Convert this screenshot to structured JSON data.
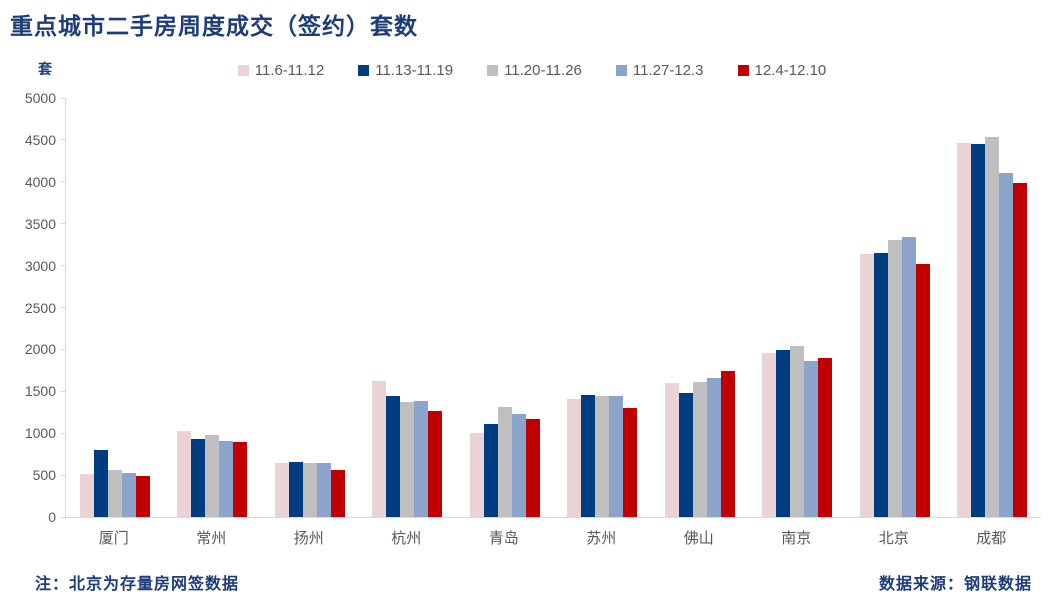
{
  "title": "重点城市二手房周度成交（签约）套数",
  "unit_label": "套",
  "footer": {
    "note": "注：北京为存量房网签数据",
    "source": "数据来源：钢联数据"
  },
  "colors": {
    "title_text": "#1E3C78",
    "footer_text": "#1E3C78",
    "axis_text": "#595959",
    "legend_text": "#595959",
    "axis_line": "#D9D9D9",
    "background": "#FFFFFF"
  },
  "chart_data": {
    "type": "bar",
    "title": "重点城市二手房周度成交（签约）套数",
    "ylabel": "套",
    "xlabel": "",
    "categories": [
      "厦门",
      "常州",
      "扬州",
      "杭州",
      "青岛",
      "苏州",
      "佛山",
      "南京",
      "北京",
      "成都"
    ],
    "series": [
      {
        "name": "11.6-11.12",
        "color": "#EBD3D5",
        "values": [
          510,
          1030,
          645,
          1620,
          1000,
          1410,
          1595,
          1960,
          3135,
          4460
        ]
      },
      {
        "name": "11.13-11.19",
        "color": "#003D80",
        "values": [
          795,
          930,
          655,
          1445,
          1105,
          1455,
          1475,
          1990,
          3150,
          4450
        ]
      },
      {
        "name": "11.20-11.26",
        "color": "#BFBFBF",
        "values": [
          565,
          975,
          645,
          1375,
          1315,
          1445,
          1610,
          2045,
          3305,
          4530
        ]
      },
      {
        "name": "11.27-12.3",
        "color": "#8CA3CB",
        "values": [
          520,
          910,
          645,
          1390,
          1230,
          1450,
          1655,
          1865,
          3345,
          4105
        ]
      },
      {
        "name": "12.4-12.10",
        "color": "#C00000",
        "values": [
          490,
          895,
          560,
          1265,
          1175,
          1295,
          1745,
          1900,
          3015,
          3985
        ]
      }
    ],
    "ylim": [
      0,
      5000
    ],
    "ytick_step": 500,
    "y_ticks": [
      "0",
      "500",
      "1000",
      "1500",
      "2000",
      "2500",
      "3000",
      "3500",
      "4000",
      "4500",
      "5000"
    ],
    "grid": false,
    "legend_position": "top"
  }
}
